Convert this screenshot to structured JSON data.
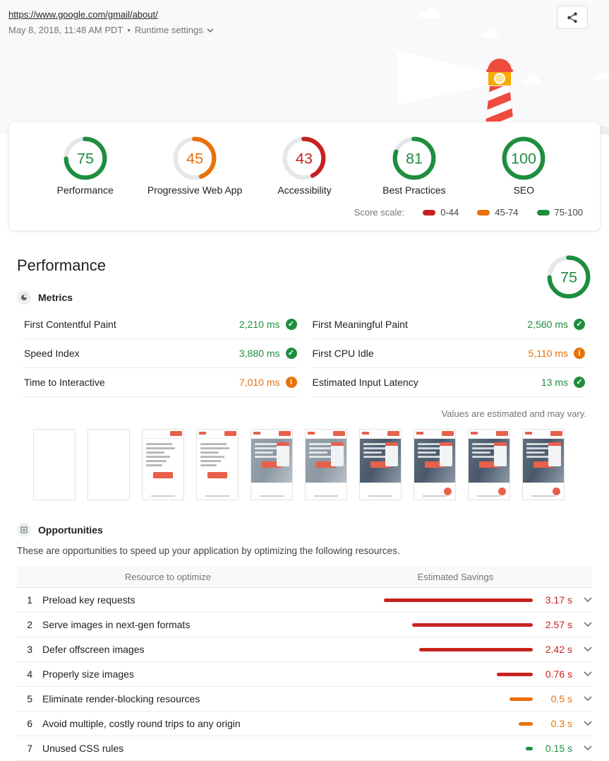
{
  "colors": {
    "pass": "#1e8e3e",
    "average": "#e8710a",
    "fail": "#c7221f",
    "gauge_track": "#e4e7eb"
  },
  "header": {
    "url": "https://www.google.com/gmail/about/",
    "timestamp": "May 8, 2018, 11:48 AM PDT",
    "separator": "•",
    "runtime_settings_label": "Runtime settings"
  },
  "scores": {
    "gauges": [
      {
        "label": "Performance",
        "score": 75,
        "level": "pass"
      },
      {
        "label": "Progressive Web App",
        "score": 45,
        "level": "average"
      },
      {
        "label": "Accessibility",
        "score": 43,
        "level": "fail"
      },
      {
        "label": "Best Practices",
        "score": 81,
        "level": "pass"
      },
      {
        "label": "SEO",
        "score": 100,
        "level": "pass"
      }
    ],
    "scale": {
      "label": "Score scale:",
      "ranges": [
        {
          "label": "0-44",
          "level": "fail"
        },
        {
          "label": "45-74",
          "level": "average"
        },
        {
          "label": "75-100",
          "level": "pass"
        }
      ]
    }
  },
  "performance": {
    "title": "Performance",
    "gauge": {
      "score": 75,
      "level": "pass"
    },
    "metrics_header": "Metrics",
    "metrics": [
      {
        "name": "First Contentful Paint",
        "value": "2,210 ms",
        "level": "pass"
      },
      {
        "name": "Speed Index",
        "value": "3,880 ms",
        "level": "pass"
      },
      {
        "name": "Time to Interactive",
        "value": "7,010 ms",
        "level": "average"
      },
      {
        "name": "First Meaningful Paint",
        "value": "2,560 ms",
        "level": "pass"
      },
      {
        "name": "First CPU Idle",
        "value": "5,110 ms",
        "level": "average"
      },
      {
        "name": "Estimated Input Latency",
        "value": "13 ms",
        "level": "pass"
      }
    ],
    "disclaimer": "Values are estimated and may vary.",
    "filmstrip": [
      {
        "frame": 1,
        "variant": "blank"
      },
      {
        "frame": 2,
        "variant": "blank"
      },
      {
        "frame": 3,
        "variant": "text"
      },
      {
        "frame": 4,
        "variant": "text-logo"
      },
      {
        "frame": 5,
        "variant": "photo-light"
      },
      {
        "frame": 6,
        "variant": "photo-light"
      },
      {
        "frame": 7,
        "variant": "photo"
      },
      {
        "frame": 8,
        "variant": "photo-fab"
      },
      {
        "frame": 9,
        "variant": "photo-fab"
      },
      {
        "frame": 10,
        "variant": "photo-fab"
      }
    ]
  },
  "opportunities": {
    "title": "Opportunities",
    "description": "These are opportunities to speed up your application by optimizing the following resources.",
    "columns": [
      "Resource to optimize",
      "Estimated Savings"
    ],
    "max_seconds": 3.17,
    "items": [
      {
        "index": 1,
        "name": "Preload key requests",
        "savings": "3.17 s",
        "seconds": 3.17,
        "level": "fail"
      },
      {
        "index": 2,
        "name": "Serve images in next-gen formats",
        "savings": "2.57 s",
        "seconds": 2.57,
        "level": "fail"
      },
      {
        "index": 3,
        "name": "Defer offscreen images",
        "savings": "2.42 s",
        "seconds": 2.42,
        "level": "fail"
      },
      {
        "index": 4,
        "name": "Properly size images",
        "savings": "0.76 s",
        "seconds": 0.76,
        "level": "fail"
      },
      {
        "index": 5,
        "name": "Eliminate render-blocking resources",
        "savings": "0.5 s",
        "seconds": 0.5,
        "level": "average"
      },
      {
        "index": 6,
        "name": "Avoid multiple, costly round trips to any origin",
        "savings": "0.3 s",
        "seconds": 0.3,
        "level": "average"
      },
      {
        "index": 7,
        "name": "Unused CSS rules",
        "savings": "0.15 s",
        "seconds": 0.15,
        "level": "pass"
      }
    ]
  }
}
